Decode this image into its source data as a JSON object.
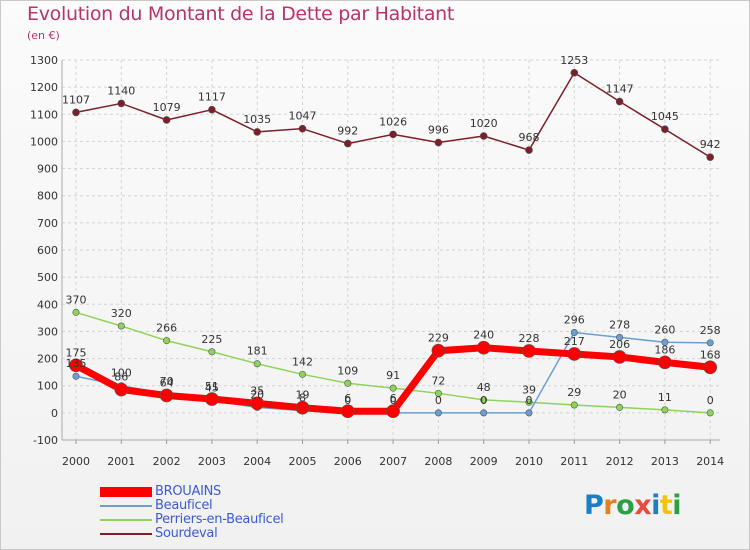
{
  "title": "Evolution du Montant de la Dette par Habitant",
  "subtitle": "(en €)",
  "logo": {
    "text": "Proxiti",
    "colors": [
      "#1b7fc4",
      "#e67e22",
      "#2e9e43",
      "#e74c3c",
      "#1b7fc4",
      "#f1c40f",
      "#2e9e43"
    ]
  },
  "chart_data": {
    "type": "line",
    "x": [
      "2000",
      "2001",
      "2002",
      "2003",
      "2004",
      "2005",
      "2006",
      "2007",
      "2008",
      "2009",
      "2010",
      "2011",
      "2012",
      "2013",
      "2014"
    ],
    "ylim": [
      -100,
      1300
    ],
    "yticks": [
      -100,
      0,
      100,
      200,
      300,
      400,
      500,
      600,
      700,
      800,
      900,
      1000,
      1100,
      1200,
      1300
    ],
    "grid": true,
    "legend_position": "bottom-left",
    "series": [
      {
        "name": "Sourdeval",
        "color": "#7b1f2a",
        "values": [
          1107,
          1140,
          1079,
          1117,
          1035,
          1047,
          992,
          1026,
          996,
          1020,
          968,
          1253,
          1147,
          1045,
          942
        ]
      },
      {
        "name": "Perriers-en-Beauficel",
        "color": "#8fd45a",
        "values": [
          370,
          320,
          266,
          225,
          181,
          142,
          109,
          91,
          72,
          48,
          39,
          29,
          20,
          11,
          0
        ]
      },
      {
        "name": "Beauficel",
        "color": "#6a9fd4",
        "values": [
          135,
          100,
          70,
          45,
          20,
          8,
          0,
          0,
          0,
          0,
          0,
          296,
          278,
          260,
          258
        ]
      },
      {
        "name": "BROUAINS",
        "color": "#ff0000",
        "values": [
          175,
          86,
          64,
          51,
          35,
          19,
          6,
          6,
          229,
          240,
          228,
          217,
          206,
          186,
          168
        ]
      }
    ]
  }
}
